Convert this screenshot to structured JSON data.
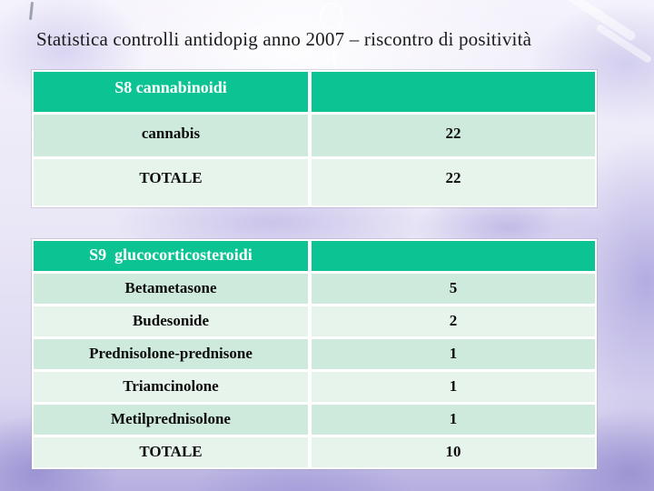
{
  "slide": {
    "title": "Statistica controlli antidopig anno 2007 – riscontro di positività"
  },
  "tables": [
    {
      "header": "S8 cannabinoidi",
      "rows": [
        {
          "label": "cannabis",
          "value": "22"
        },
        {
          "label": "TOTALE",
          "value": "22"
        }
      ]
    },
    {
      "header": "S9  glucocorticosteroidi",
      "rows": [
        {
          "label": "Betametasone",
          "value": "5"
        },
        {
          "label": "Budesonide",
          "value": "2"
        },
        {
          "label": "Prednisolone-prednisone",
          "value": "1"
        },
        {
          "label": "Triamcinolone",
          "value": "1"
        },
        {
          "label": "Metilprednisolone",
          "value": "1"
        },
        {
          "label": "TOTALE",
          "value": "10"
        }
      ]
    }
  ],
  "colors": {
    "header_green": "#0cc493",
    "row_alt_dark": "#cdeadd",
    "row_alt_light": "#e6f4ec",
    "cell_gap_white": "#ffffff",
    "header_text": "#ffffff",
    "body_text": "#0d0d0d",
    "background_lavender": "#dcd8f1"
  }
}
